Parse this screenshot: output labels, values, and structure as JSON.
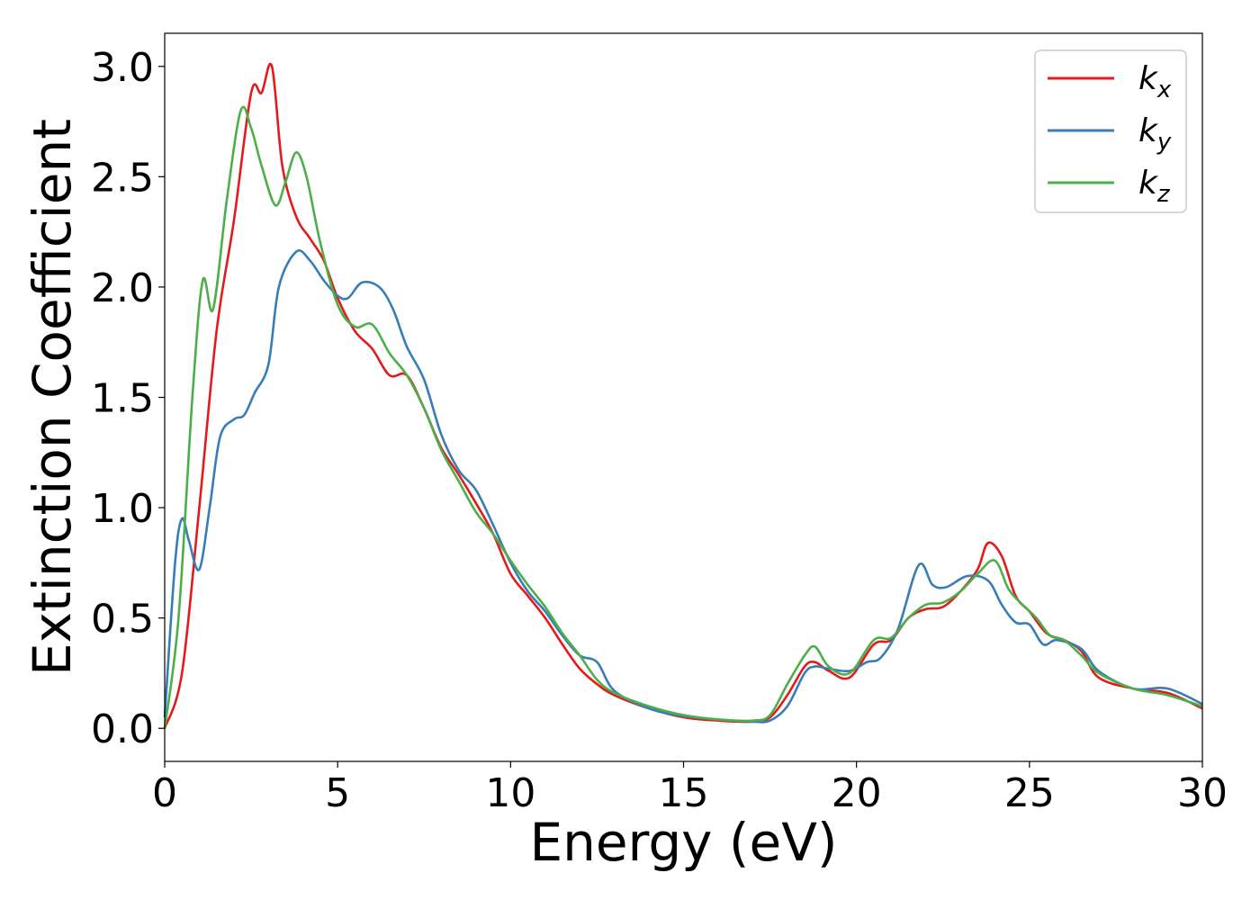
{
  "chart_data": {
    "type": "line",
    "title": "",
    "xlabel": "Energy (eV)",
    "ylabel": "Extinction Coefficient",
    "xlim": [
      0,
      30
    ],
    "ylim": [
      -0.15,
      3.15
    ],
    "xticks": [
      "0",
      "5",
      "10",
      "15",
      "20",
      "25",
      "30"
    ],
    "yticks": [
      "0.0",
      "0.5",
      "1.0",
      "1.5",
      "2.0",
      "2.5",
      "3.0"
    ],
    "grid": false,
    "legend_position": "top-right",
    "series": [
      {
        "name": "k_x",
        "legend_base": "k",
        "legend_sub": "x",
        "color": "#e41a1c",
        "x": [
          0,
          0.5,
          1.0,
          1.5,
          2.0,
          2.5,
          2.8,
          3.1,
          3.4,
          3.8,
          4.2,
          4.6,
          5.0,
          5.5,
          6.0,
          6.5,
          7.0,
          7.5,
          8.0,
          8.5,
          9.0,
          9.5,
          10.0,
          10.5,
          11.0,
          11.5,
          12.0,
          12.5,
          13.0,
          14.0,
          15.0,
          16.0,
          17.0,
          17.5,
          18.0,
          18.5,
          18.8,
          19.2,
          19.8,
          20.5,
          21.0,
          21.5,
          22.0,
          22.5,
          23.0,
          23.5,
          23.8,
          24.2,
          24.6,
          25.0,
          25.5,
          26.0,
          26.5,
          27.0,
          28.0,
          29.0,
          30.0
        ],
        "y": [
          0.0,
          0.25,
          1.0,
          1.8,
          2.3,
          2.88,
          2.88,
          3.0,
          2.55,
          2.32,
          2.22,
          2.12,
          1.95,
          1.8,
          1.72,
          1.6,
          1.6,
          1.45,
          1.27,
          1.15,
          1.02,
          0.88,
          0.7,
          0.6,
          0.5,
          0.38,
          0.27,
          0.2,
          0.15,
          0.09,
          0.05,
          0.035,
          0.03,
          0.05,
          0.15,
          0.28,
          0.3,
          0.26,
          0.23,
          0.38,
          0.4,
          0.5,
          0.54,
          0.55,
          0.62,
          0.72,
          0.84,
          0.78,
          0.6,
          0.53,
          0.43,
          0.4,
          0.35,
          0.23,
          0.18,
          0.16,
          0.09
        ]
      },
      {
        "name": "k_y",
        "legend_base": "k",
        "legend_sub": "y",
        "color": "#377eb8",
        "x": [
          0,
          0.3,
          0.5,
          0.7,
          1.0,
          1.3,
          1.6,
          2.0,
          2.3,
          2.6,
          3.0,
          3.3,
          3.8,
          4.2,
          4.6,
          5.0,
          5.3,
          5.7,
          6.2,
          6.6,
          7.0,
          7.5,
          8.0,
          8.5,
          9.0,
          9.5,
          10.0,
          10.5,
          11.0,
          11.5,
          12.0,
          12.5,
          13.0,
          14.0,
          15.0,
          16.0,
          17.0,
          17.5,
          18.0,
          18.5,
          18.8,
          19.2,
          19.8,
          20.3,
          20.7,
          21.2,
          21.8,
          22.2,
          22.6,
          23.2,
          23.8,
          24.2,
          24.6,
          25.0,
          25.4,
          25.8,
          26.5,
          27.0,
          28.0,
          29.0,
          30.0
        ],
        "y": [
          0.05,
          0.75,
          0.95,
          0.85,
          0.72,
          1.0,
          1.32,
          1.4,
          1.42,
          1.52,
          1.65,
          2.0,
          2.16,
          2.12,
          2.03,
          1.96,
          1.95,
          2.02,
          2.0,
          1.9,
          1.73,
          1.58,
          1.33,
          1.17,
          1.08,
          0.92,
          0.75,
          0.62,
          0.53,
          0.42,
          0.33,
          0.3,
          0.17,
          0.09,
          0.055,
          0.04,
          0.03,
          0.035,
          0.1,
          0.25,
          0.28,
          0.27,
          0.26,
          0.3,
          0.32,
          0.45,
          0.74,
          0.65,
          0.64,
          0.69,
          0.67,
          0.56,
          0.48,
          0.47,
          0.38,
          0.4,
          0.36,
          0.26,
          0.18,
          0.18,
          0.11
        ]
      },
      {
        "name": "k_z",
        "legend_base": "k",
        "legend_sub": "z",
        "color": "#4daf4a",
        "x": [
          0,
          0.4,
          0.8,
          1.1,
          1.4,
          1.8,
          2.2,
          2.5,
          2.8,
          3.2,
          3.5,
          3.8,
          4.1,
          4.5,
          5.0,
          5.5,
          6.0,
          6.5,
          7.0,
          7.5,
          8.0,
          8.5,
          9.0,
          9.5,
          10.0,
          10.5,
          11.0,
          11.5,
          12.0,
          12.5,
          13.0,
          14.0,
          15.0,
          16.0,
          17.0,
          17.5,
          18.0,
          18.5,
          18.8,
          19.2,
          19.8,
          20.5,
          21.0,
          21.5,
          22.0,
          22.5,
          23.0,
          23.5,
          24.0,
          24.4,
          24.8,
          25.2,
          25.6,
          26.0,
          26.5,
          27.0,
          28.0,
          29.0,
          30.0
        ],
        "y": [
          0.0,
          0.5,
          1.5,
          2.03,
          1.9,
          2.4,
          2.8,
          2.72,
          2.55,
          2.37,
          2.48,
          2.61,
          2.5,
          2.2,
          1.92,
          1.82,
          1.83,
          1.7,
          1.6,
          1.45,
          1.26,
          1.12,
          0.98,
          0.88,
          0.76,
          0.65,
          0.55,
          0.43,
          0.33,
          0.22,
          0.16,
          0.1,
          0.06,
          0.04,
          0.035,
          0.06,
          0.2,
          0.33,
          0.37,
          0.28,
          0.25,
          0.4,
          0.41,
          0.5,
          0.56,
          0.57,
          0.62,
          0.7,
          0.76,
          0.63,
          0.56,
          0.5,
          0.42,
          0.4,
          0.33,
          0.25,
          0.18,
          0.15,
          0.1
        ]
      }
    ]
  }
}
